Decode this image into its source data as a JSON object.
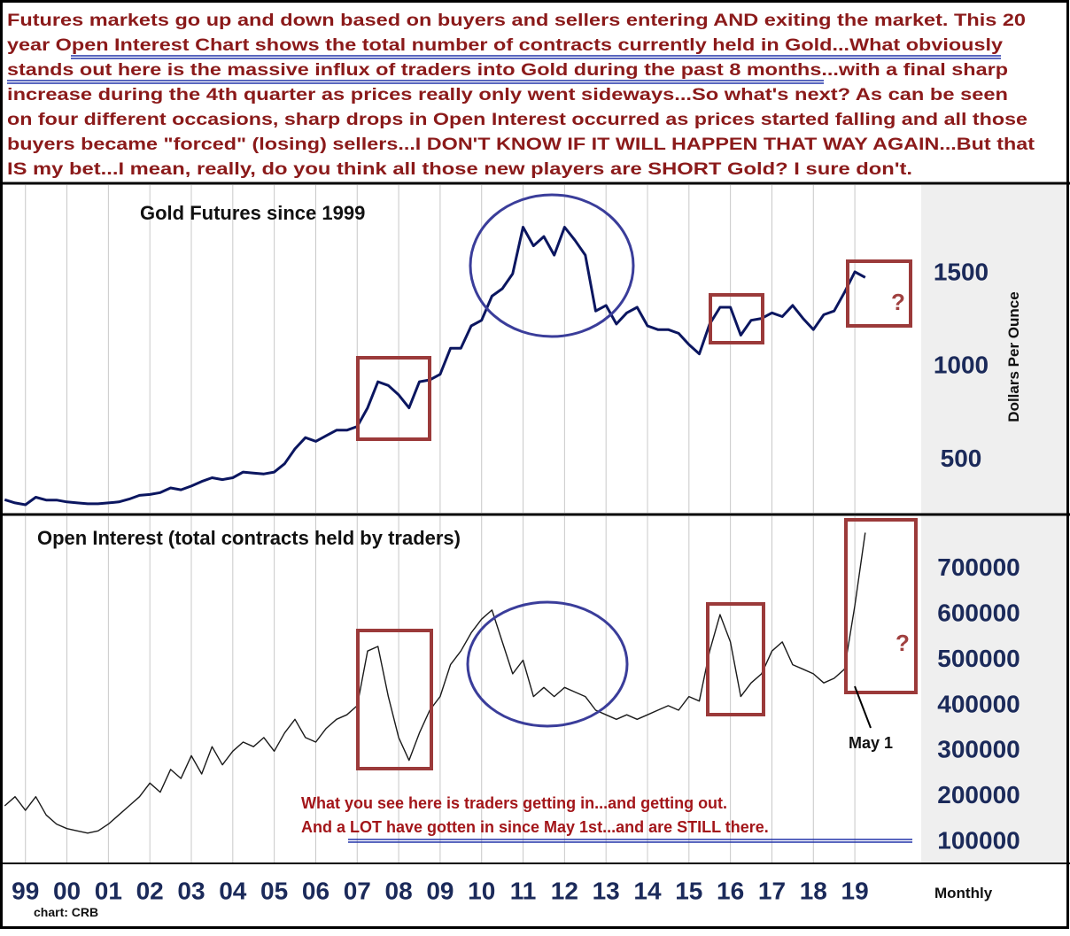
{
  "header": {
    "lines": [
      "Futures markets go up and down based on buyers and sellers entering AND exiting the market. This 20",
      "year Open Interest Chart shows the total number of contracts currently held in Gold...What obviously",
      "stands out here is the massive influx of traders into Gold during the past 8 months...with a final sharp",
      "increase during the 4th quarter as prices really only went sideways...So what's next? As can be seen",
      "on four different occasions, sharp drops in Open Interest occurred as prices started falling and all those",
      "buyers became \"forced\" (losing) sellers...I DON'T KNOW IF IT WILL HAPPEN THAT WAY AGAIN...But that",
      "IS my bet...I mean, really, do you think all those new players are SHORT Gold? I sure don't."
    ]
  },
  "notes": {
    "lines": [
      "What you see here is traders getting in...and getting out.",
      "And a LOT have gotten in since May 1st...and are STILL there."
    ],
    "question_marks": [
      "?",
      "?"
    ],
    "may": "May 1",
    "frequency": "Monthly",
    "source": "chart: CRB"
  },
  "chart_data": [
    {
      "type": "line",
      "title": "Gold Futures since 1999",
      "y_label": "Dollars Per Ounce",
      "color": "#0b1660",
      "xlim": [
        1999.1,
        2021.1
      ],
      "ylim": [
        217,
        1976
      ],
      "yticks": [
        500,
        1000,
        1500
      ],
      "x": [
        1999,
        1999.25,
        1999.5,
        1999.75,
        2000,
        2000.25,
        2000.5,
        2000.75,
        2001,
        2001.25,
        2001.5,
        2001.75,
        2002,
        2002.25,
        2002.5,
        2002.75,
        2003,
        2003.25,
        2003.5,
        2003.75,
        2004,
        2004.25,
        2004.5,
        2004.75,
        2005,
        2005.25,
        2005.5,
        2005.75,
        2006,
        2006.25,
        2006.5,
        2006.75,
        2007,
        2007.25,
        2007.5,
        2007.75,
        2008,
        2008.25,
        2008.5,
        2008.75,
        2009,
        2009.25,
        2009.5,
        2009.75,
        2010,
        2010.25,
        2010.5,
        2010.75,
        2011,
        2011.25,
        2011.5,
        2011.75,
        2012,
        2012.25,
        2012.5,
        2012.75,
        2013,
        2013.25,
        2013.5,
        2013.75,
        2014,
        2014.25,
        2014.5,
        2014.75,
        2015,
        2015.25,
        2015.5,
        2015.75,
        2016,
        2016.25,
        2016.5,
        2016.75,
        2017,
        2017.25,
        2017.5,
        2017.75,
        2018,
        2018.25,
        2018.5,
        2018.75,
        2019,
        2019.25,
        2019.5,
        2019.75
      ],
      "values": [
        287,
        270,
        260,
        300,
        285,
        285,
        275,
        270,
        265,
        265,
        270,
        275,
        290,
        310,
        315,
        325,
        350,
        340,
        360,
        385,
        405,
        395,
        405,
        435,
        430,
        425,
        435,
        480,
        560,
        620,
        600,
        630,
        660,
        660,
        680,
        780,
        920,
        900,
        850,
        780,
        920,
        930,
        960,
        1100,
        1100,
        1220,
        1250,
        1380,
        1420,
        1500,
        1750,
        1650,
        1700,
        1600,
        1750,
        1680,
        1600,
        1300,
        1330,
        1230,
        1290,
        1320,
        1220,
        1200,
        1200,
        1180,
        1120,
        1070,
        1230,
        1320,
        1320,
        1170,
        1250,
        1260,
        1290,
        1270,
        1330,
        1260,
        1200,
        1280,
        1300,
        1400,
        1510,
        1480
      ]
    },
    {
      "type": "line",
      "title": "Open Interest (total contracts held by traders)",
      "color": "#1a1a1a",
      "xlim": [
        1999.1,
        2021.1
      ],
      "ylim": [
        55500,
        816000
      ],
      "yticks": [
        100000,
        200000,
        300000,
        400000,
        500000,
        600000,
        700000
      ],
      "xticks": [
        {
          "value": 1999.5,
          "label": "99"
        },
        {
          "value": 2000.5,
          "label": "00"
        },
        {
          "value": 2001.5,
          "label": "01"
        },
        {
          "value": 2002.5,
          "label": "02"
        },
        {
          "value": 2003.5,
          "label": "03"
        },
        {
          "value": 2004.5,
          "label": "04"
        },
        {
          "value": 2005.5,
          "label": "05"
        },
        {
          "value": 2006.5,
          "label": "06"
        },
        {
          "value": 2007.5,
          "label": "07"
        },
        {
          "value": 2008.5,
          "label": "08"
        },
        {
          "value": 2009.5,
          "label": "09"
        },
        {
          "value": 2010.5,
          "label": "10"
        },
        {
          "value": 2011.5,
          "label": "11"
        },
        {
          "value": 2012.5,
          "label": "12"
        },
        {
          "value": 2013.5,
          "label": "13"
        },
        {
          "value": 2014.5,
          "label": "14"
        },
        {
          "value": 2015.5,
          "label": "15"
        },
        {
          "value": 2016.5,
          "label": "16"
        },
        {
          "value": 2017.5,
          "label": "17"
        },
        {
          "value": 2018.5,
          "label": "18"
        },
        {
          "value": 2019.5,
          "label": "19"
        }
      ],
      "grid": "x",
      "x": [
        1999,
        1999.25,
        1999.5,
        1999.75,
        2000,
        2000.25,
        2000.5,
        2000.75,
        2001,
        2001.25,
        2001.5,
        2001.75,
        2002,
        2002.25,
        2002.5,
        2002.75,
        2003,
        2003.25,
        2003.5,
        2003.75,
        2004,
        2004.25,
        2004.5,
        2004.75,
        2005,
        2005.25,
        2005.5,
        2005.75,
        2006,
        2006.25,
        2006.5,
        2006.75,
        2007,
        2007.25,
        2007.5,
        2007.75,
        2008,
        2008.25,
        2008.5,
        2008.75,
        2009,
        2009.25,
        2009.5,
        2009.75,
        2010,
        2010.25,
        2010.5,
        2010.75,
        2011,
        2011.25,
        2011.5,
        2011.75,
        2012,
        2012.25,
        2012.5,
        2012.75,
        2013,
        2013.25,
        2013.5,
        2013.75,
        2014,
        2014.25,
        2014.5,
        2014.75,
        2015,
        2015.25,
        2015.5,
        2015.75,
        2016,
        2016.25,
        2016.5,
        2016.75,
        2017,
        2017.25,
        2017.5,
        2017.75,
        2018,
        2018.25,
        2018.5,
        2018.75,
        2019,
        2019.25,
        2019.5,
        2019.75
      ],
      "values": [
        180000,
        200000,
        170000,
        200000,
        160000,
        140000,
        130000,
        125000,
        120000,
        125000,
        140000,
        160000,
        180000,
        200000,
        230000,
        210000,
        260000,
        240000,
        290000,
        250000,
        310000,
        270000,
        300000,
        320000,
        310000,
        330000,
        300000,
        340000,
        370000,
        330000,
        320000,
        350000,
        370000,
        380000,
        400000,
        520000,
        530000,
        420000,
        330000,
        280000,
        340000,
        390000,
        420000,
        490000,
        520000,
        560000,
        590000,
        610000,
        540000,
        470000,
        500000,
        420000,
        440000,
        420000,
        440000,
        430000,
        420000,
        390000,
        380000,
        370000,
        380000,
        370000,
        380000,
        390000,
        400000,
        390000,
        420000,
        410000,
        520000,
        600000,
        540000,
        420000,
        450000,
        470000,
        520000,
        540000,
        490000,
        480000,
        470000,
        450000,
        460000,
        480000,
        620000,
        780000
      ]
    }
  ]
}
